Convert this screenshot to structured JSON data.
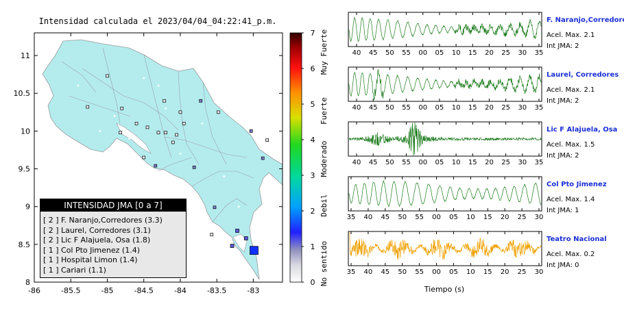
{
  "title": "Intensidad calculada el 2023/04/04_04:22:41_p.m.",
  "map": {
    "lon_ticks": [
      "-86",
      "-85.5",
      "-85",
      "-84.5",
      "-84",
      "-83.5",
      "-83"
    ],
    "lat_ticks": [
      "8",
      "8.5",
      "9",
      "9.5",
      "10",
      "10.5",
      "11"
    ],
    "xlim": [
      -86,
      -82.6
    ],
    "ylim": [
      8,
      11.3
    ]
  },
  "colorbar": {
    "ticks": [
      "0",
      "1",
      "2",
      "3",
      "4",
      "5",
      "6",
      "7"
    ],
    "labels": [
      "No sentido",
      "Debil",
      "Moderado",
      "Fuerte",
      "Muy Fuerte"
    ]
  },
  "legend": {
    "title": "INTENSIDAD JMA [0 a 7]",
    "items": [
      {
        "level": "[ 2 ]",
        "text": "F. Naranjo,Corredores (3.3)"
      },
      {
        "level": "[ 2 ]",
        "text": "Laurel, Corredores (3.1)"
      },
      {
        "level": "[ 2 ]",
        "text": "Lic F Alajuela, Osa (1.8)"
      },
      {
        "level": "[ 1 ]",
        "text": "Col Pto Jimenez (1.4)"
      },
      {
        "level": "[ 1 ]",
        "text": "Hospital Limon (1.4)"
      },
      {
        "level": "[ 1 ]",
        "text": "Cariari (1.1)"
      }
    ]
  },
  "stations": [
    {
      "name": "F. Naranjo,Corredores",
      "acel": "Acel. Max. 2.1",
      "int": "Int JMA: 2",
      "color": "#1a7a1a",
      "ticks": [
        "40",
        "45",
        "50",
        "55",
        "00",
        "05",
        "10",
        "15",
        "20",
        "25",
        "30",
        "35"
      ]
    },
    {
      "name": "Laurel, Corredores",
      "acel": "Acel. Max. 2.1",
      "int": "Int JMA: 2",
      "color": "#1a7a1a",
      "ticks": [
        "40",
        "45",
        "50",
        "55",
        "00",
        "05",
        "10",
        "15",
        "20",
        "25",
        "30",
        "35"
      ]
    },
    {
      "name": "Lic F Alajuela, Osa",
      "acel": "Acel. Max. 1.5",
      "int": "Int JMA: 2",
      "color": "#1a7a1a",
      "ticks": [
        "40",
        "45",
        "50",
        "55",
        "00",
        "05",
        "10",
        "15",
        "20",
        "25",
        "30",
        "35"
      ]
    },
    {
      "name": "Col Pto Jimenez",
      "acel": "Acel. Max. 1.4",
      "int": "Int JMA: 1",
      "color": "#1a7a1a",
      "ticks": [
        "35",
        "40",
        "45",
        "50",
        "55",
        "00",
        "05",
        "10",
        "15",
        "20",
        "25",
        "30"
      ]
    },
    {
      "name": "Teatro Nacional",
      "acel": "Acel. Max. 0.2",
      "int": "Int JMA: 0",
      "color": "#f0a000",
      "ticks": [
        "35",
        "40",
        "45",
        "50",
        "55",
        "00",
        "05",
        "10",
        "15",
        "20",
        "25",
        "30"
      ]
    }
  ],
  "xlabel": "Tiempo (s)",
  "chart_data": {
    "type": "scatter",
    "title": "Intensidad calculada el 2023/04/04_04:22:41_p.m.",
    "xlabel": "",
    "ylabel": "",
    "xlim": [
      -86,
      -82.6
    ],
    "ylim": [
      8,
      11.3
    ],
    "series": [
      {
        "values": [
          {
            "x": -82.99,
            "y": 8.42,
            "intensity": 2
          },
          {
            "x": -83.1,
            "y": 8.58,
            "intensity": 2
          },
          {
            "x": -83.29,
            "y": 8.48,
            "intensity": 2
          },
          {
            "x": -83.22,
            "y": 8.68,
            "intensity": 2
          },
          {
            "x": -83.03,
            "y": 10.0,
            "intensity": 1
          },
          {
            "x": -82.87,
            "y": 9.64,
            "intensity": 1
          },
          {
            "x": -83.53,
            "y": 8.99,
            "intensity": 1
          },
          {
            "x": -83.81,
            "y": 9.52,
            "intensity": 1
          },
          {
            "x": -84.34,
            "y": 9.54,
            "intensity": 1
          },
          {
            "x": -83.72,
            "y": 10.4,
            "intensity": 1
          },
          {
            "x": -85.0,
            "y": 10.73,
            "intensity": 0
          },
          {
            "x": -84.22,
            "y": 10.4,
            "intensity": 0
          },
          {
            "x": -83.48,
            "y": 10.25,
            "intensity": 0
          },
          {
            "x": -84.6,
            "y": 10.1,
            "intensity": 0
          },
          {
            "x": -84.45,
            "y": 10.05,
            "intensity": 0
          },
          {
            "x": -84.2,
            "y": 9.98,
            "intensity": 0
          },
          {
            "x": -84.05,
            "y": 9.95,
            "intensity": 0
          },
          {
            "x": -83.95,
            "y": 10.1,
            "intensity": 0
          },
          {
            "x": -84.1,
            "y": 9.85,
            "intensity": 0
          },
          {
            "x": -84.3,
            "y": 9.98,
            "intensity": 0
          },
          {
            "x": -85.27,
            "y": 10.32,
            "intensity": 0
          },
          {
            "x": -84.82,
            "y": 9.98,
            "intensity": 0
          },
          {
            "x": -84.18,
            "y": 9.06,
            "intensity": 0
          },
          {
            "x": -82.81,
            "y": 9.88,
            "intensity": 0
          },
          {
            "x": -83.57,
            "y": 8.63,
            "intensity": 0
          },
          {
            "x": -84.8,
            "y": 10.3,
            "intensity": 0
          },
          {
            "x": -84.0,
            "y": 10.25,
            "intensity": 0
          },
          {
            "x": -84.5,
            "y": 9.65,
            "intensity": 0
          }
        ]
      }
    ]
  }
}
